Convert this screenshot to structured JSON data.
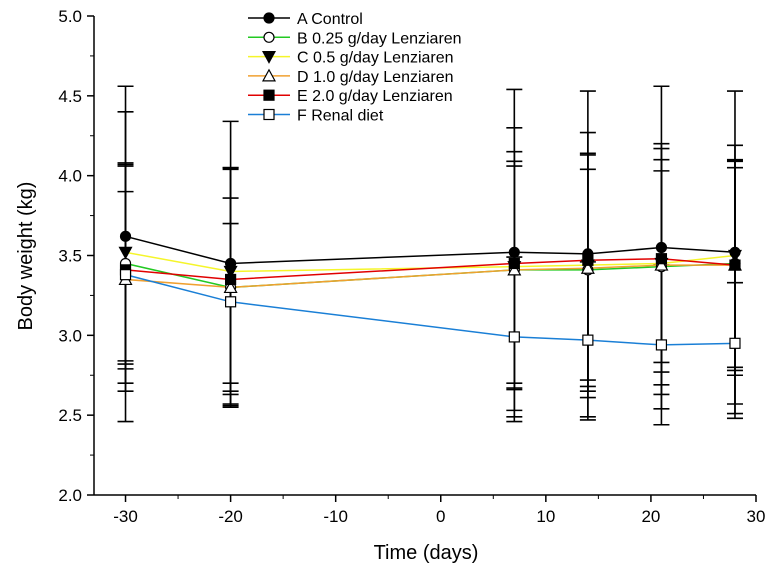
{
  "chart_data": {
    "type": "line",
    "title": "",
    "xlabel": "Time (days)",
    "ylabel": "Body weight (kg)",
    "xlim": [
      -33,
      30
    ],
    "ylim": [
      2.0,
      5.0
    ],
    "xticks": [
      "-30",
      "-20",
      "-10",
      "0",
      "10",
      "20",
      "30"
    ],
    "yticks": [
      "2.0",
      "2.5",
      "3.0",
      "3.5",
      "4.0",
      "4.5",
      "5.0"
    ],
    "x": [
      -30,
      -20,
      7,
      14,
      21,
      28
    ],
    "grid": false,
    "legend_position": "top-center",
    "series": [
      {
        "name": "A Control",
        "color": "#000000",
        "marker": "circle-filled",
        "values": [
          3.62,
          3.45,
          3.52,
          3.51,
          3.55,
          3.52
        ],
        "error": [
          [
            2.46,
            4.56
          ],
          [
            2.56,
            4.34
          ],
          [
            2.49,
            4.54
          ],
          [
            2.49,
            4.53
          ],
          [
            2.54,
            4.56
          ],
          [
            2.51,
            4.53
          ]
        ]
      },
      {
        "name": "B 0.25 g/day Lenziaren",
        "color": "#22c922",
        "marker": "circle-open",
        "values": [
          3.45,
          3.3,
          3.41,
          3.41,
          3.43,
          3.45
        ],
        "error": [
          [
            2.65,
            4.08
          ],
          [
            2.57,
            4.05
          ],
          [
            2.67,
            4.15
          ],
          [
            2.68,
            4.14
          ],
          [
            2.69,
            4.17
          ],
          [
            2.8,
            4.1
          ]
        ]
      },
      {
        "name": "C 0.5 g/day Lenziaren",
        "color": "#f5f52a",
        "marker": "triangle-down-filled",
        "values": [
          3.52,
          3.4,
          3.43,
          3.44,
          3.45,
          3.5
        ],
        "error": [
          [
            2.79,
            4.4
          ],
          [
            2.7,
            4.04
          ],
          [
            2.66,
            4.3
          ],
          [
            2.65,
            4.27
          ],
          [
            2.77,
            4.2
          ],
          [
            2.75,
            4.19
          ]
        ]
      },
      {
        "name": "D 1.0 g/day Lenziaren",
        "color": "#f0a030",
        "marker": "triangle-up-open",
        "values": [
          3.35,
          3.3,
          3.41,
          3.42,
          3.44,
          3.44
        ],
        "error": [
          [
            2.82,
            3.9
          ],
          [
            2.65,
            3.86
          ],
          [
            2.7,
            4.06
          ],
          [
            2.72,
            4.04
          ],
          [
            2.83,
            4.03
          ],
          [
            2.78,
            4.05
          ]
        ]
      },
      {
        "name": "E 2.0 g/day Lenziaren",
        "color": "#e00000",
        "marker": "square-filled",
        "values": [
          3.41,
          3.35,
          3.45,
          3.47,
          3.48,
          3.44
        ],
        "error": [
          [
            2.84,
            4.07
          ],
          [
            2.63,
            4.05
          ],
          [
            2.53,
            4.09
          ],
          [
            2.61,
            4.13
          ],
          [
            2.63,
            4.1
          ],
          [
            2.57,
            4.09
          ]
        ]
      },
      {
        "name": "F Renal diet",
        "color": "#1a7fd6",
        "marker": "square-open",
        "values": [
          3.38,
          3.21,
          2.99,
          2.97,
          2.94,
          2.95
        ],
        "error": [
          [
            2.7,
            4.06
          ],
          [
            2.55,
            3.7
          ],
          [
            2.46,
            3.49
          ],
          [
            2.47,
            3.46
          ],
          [
            2.44,
            3.44
          ],
          [
            2.48,
            3.33
          ]
        ]
      }
    ]
  }
}
